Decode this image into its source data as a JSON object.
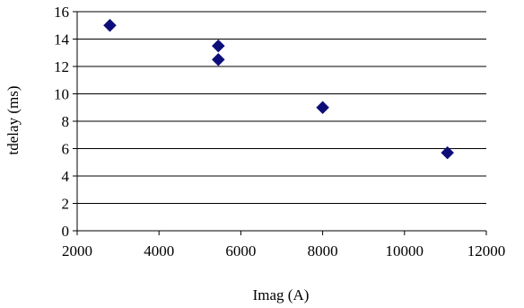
{
  "chart_data": {
    "type": "scatter",
    "title": "",
    "xlabel": "Imag (A)",
    "ylabel": "tdelay  (ms)",
    "xlim": [
      2000,
      12000
    ],
    "ylim": [
      0,
      16
    ],
    "x_ticks": [
      2000,
      4000,
      6000,
      8000,
      10000,
      12000
    ],
    "y_ticks": [
      0,
      2,
      4,
      6,
      8,
      10,
      12,
      14,
      16
    ],
    "x_tick_labels": [
      "2000",
      "4000",
      "6000",
      "8000",
      "10000",
      "12000"
    ],
    "y_tick_labels": [
      "0",
      "2",
      "4",
      "6",
      "8",
      "10",
      "12",
      "14",
      "16"
    ],
    "grid": "horizontal",
    "legend": "none",
    "marker": "diamond",
    "series": [
      {
        "x": [
          2800,
          5450,
          5450,
          8000,
          11050
        ],
        "y": [
          15,
          13.5,
          12.5,
          9,
          5.7
        ]
      }
    ],
    "colors": {
      "marker": "#0d0d7a",
      "gridline": "#000000",
      "axis": "#000000"
    }
  }
}
